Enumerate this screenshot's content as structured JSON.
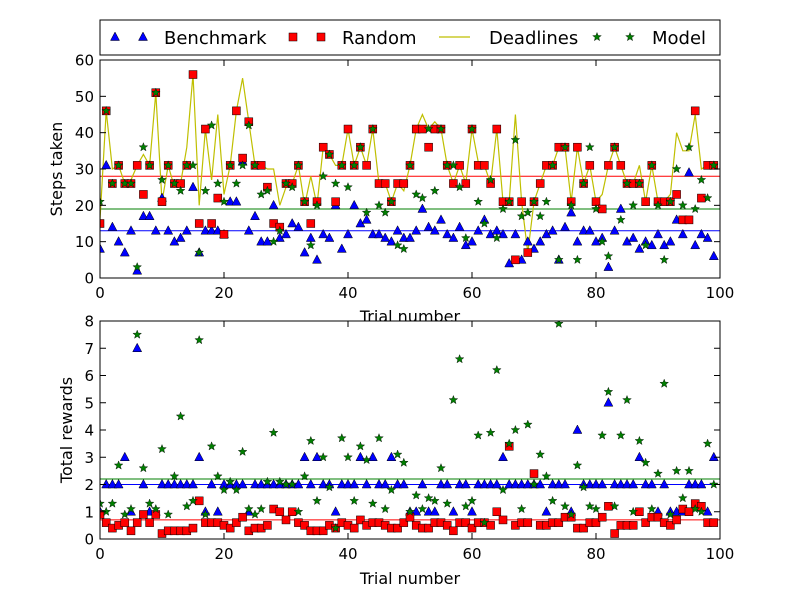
{
  "legend": {
    "placement": "top",
    "entries": [
      {
        "label": "Benchmark",
        "marker": "triangle",
        "color": "#0000ff"
      },
      {
        "label": "Random",
        "marker": "square",
        "color": "#ff0000"
      },
      {
        "label": "Deadlines",
        "marker": "line",
        "color": "#bfbf00"
      },
      {
        "label": "Model",
        "marker": "star",
        "color": "#007f00"
      }
    ]
  },
  "colors": {
    "benchmark": "#0000ff",
    "random": "#ff0000",
    "deadlines": "#bfbf00",
    "model": "#007f00"
  },
  "chart_data": [
    {
      "type": "scatter",
      "title": "",
      "xlabel": "Trial number",
      "ylabel": "Steps taken",
      "xlim": [
        0,
        100
      ],
      "ylim": [
        0,
        60
      ],
      "xticks": [
        0,
        20,
        40,
        60,
        80,
        100
      ],
      "yticks": [
        0,
        10,
        20,
        30,
        40,
        50,
        60
      ],
      "x": [
        0,
        1,
        2,
        3,
        4,
        5,
        6,
        7,
        8,
        9,
        10,
        11,
        12,
        13,
        14,
        15,
        16,
        17,
        18,
        19,
        20,
        21,
        22,
        23,
        24,
        25,
        26,
        27,
        28,
        29,
        30,
        31,
        32,
        33,
        34,
        35,
        36,
        37,
        38,
        39,
        40,
        41,
        42,
        43,
        44,
        45,
        46,
        47,
        48,
        49,
        50,
        51,
        52,
        53,
        54,
        55,
        56,
        57,
        58,
        59,
        60,
        61,
        62,
        63,
        64,
        65,
        66,
        67,
        68,
        69,
        70,
        71,
        72,
        73,
        74,
        75,
        76,
        77,
        78,
        79,
        80,
        81,
        82,
        83,
        84,
        85,
        86,
        87,
        88,
        89,
        90,
        91,
        92,
        93,
        94,
        95,
        96,
        97,
        98,
        99
      ],
      "series": [
        {
          "name": "Benchmark",
          "kind": "triangle",
          "values": [
            8,
            31,
            14,
            10,
            7,
            13,
            2,
            17,
            17,
            13,
            22,
            13,
            10,
            11,
            13,
            25,
            7,
            13,
            13,
            13,
            12,
            21,
            21,
            32,
            13,
            17,
            10,
            10,
            20,
            11,
            12,
            15,
            14,
            7,
            11,
            5,
            12,
            11,
            20,
            8,
            12,
            20,
            15,
            16,
            12,
            12,
            11,
            10,
            13,
            11,
            11,
            13,
            19,
            14,
            13,
            16,
            12,
            11,
            14,
            9,
            10,
            13,
            16,
            12,
            13,
            12,
            4,
            12,
            5,
            10,
            8,
            10,
            12,
            13,
            5,
            14,
            18,
            10,
            13,
            13,
            10,
            11,
            3,
            13,
            19,
            10,
            11,
            8,
            10,
            9,
            12,
            9,
            10,
            16,
            12,
            29,
            9,
            12,
            11,
            6
          ]
        },
        {
          "name": "Random",
          "kind": "square",
          "values": [
            15,
            46,
            26,
            31,
            26,
            26,
            31,
            23,
            31,
            51,
            21,
            31,
            26,
            26,
            31,
            56,
            15,
            41,
            15,
            22,
            12,
            31,
            46,
            33,
            43,
            31,
            31,
            25,
            15,
            14,
            26,
            26,
            31,
            21,
            15,
            21,
            36,
            34,
            21,
            31,
            41,
            31,
            36,
            31,
            41,
            26,
            26,
            21,
            26,
            26,
            31,
            41,
            41,
            36,
            41,
            41,
            31,
            26,
            31,
            26,
            41,
            31,
            31,
            26,
            41,
            21,
            21,
            5,
            21,
            7,
            21,
            26,
            31,
            31,
            36,
            36,
            21,
            36,
            26,
            31,
            21,
            19,
            31,
            36,
            31,
            26,
            26,
            26,
            21,
            31,
            21,
            21,
            21,
            23,
            16,
            16,
            46,
            22,
            31,
            31
          ]
        },
        {
          "name": "Deadlines",
          "kind": "line",
          "values": [
            16,
            46,
            30,
            31,
            26,
            27,
            31,
            34,
            31,
            51,
            21,
            31,
            25,
            26,
            36,
            56,
            20,
            41,
            27,
            45,
            23,
            31,
            46,
            55,
            43,
            31,
            31,
            30,
            30,
            20,
            25,
            26,
            31,
            20,
            28,
            20,
            36,
            34,
            31,
            31,
            41,
            31,
            36,
            31,
            41,
            26,
            26,
            21,
            26,
            24,
            31,
            41,
            45,
            41,
            43,
            41,
            31,
            26,
            31,
            26,
            41,
            32,
            31,
            26,
            41,
            21,
            21,
            45,
            21,
            7,
            21,
            26,
            31,
            31,
            36,
            36,
            21,
            36,
            26,
            31,
            21,
            23,
            31,
            36,
            31,
            26,
            26,
            31,
            21,
            31,
            21,
            21,
            23,
            40,
            35,
            35,
            45,
            30,
            31,
            31
          ]
        },
        {
          "name": "Model",
          "kind": "star",
          "values": [
            21,
            46,
            26,
            31,
            26,
            26,
            3,
            36,
            31,
            51,
            27,
            31,
            26,
            24,
            31,
            31,
            7,
            24,
            42,
            26,
            21,
            31,
            26,
            31,
            42,
            31,
            23,
            24,
            10,
            13,
            26,
            25,
            31,
            21,
            9,
            20,
            28,
            34,
            26,
            31,
            25,
            31,
            36,
            18,
            41,
            20,
            18,
            21,
            9,
            8,
            31,
            23,
            22,
            41,
            24,
            41,
            31,
            31,
            25,
            11,
            41,
            21,
            15,
            27,
            11,
            19,
            21,
            38,
            17,
            18,
            21,
            17,
            21,
            31,
            5,
            36,
            20,
            5,
            26,
            36,
            19,
            10,
            6,
            36,
            16,
            26,
            20,
            26,
            9,
            31,
            20,
            5,
            21,
            30,
            20,
            36,
            19,
            27,
            22,
            31
          ]
        }
      ],
      "hlines": [
        {
          "series": "Benchmark",
          "y": 13
        },
        {
          "series": "Model",
          "y": 19
        },
        {
          "series": "Random",
          "y": 28
        }
      ]
    },
    {
      "type": "scatter",
      "title": "",
      "xlabel": "Trial number",
      "ylabel": "Total rewards",
      "xlim": [
        0,
        100
      ],
      "ylim": [
        0,
        8
      ],
      "xticks": [
        0,
        20,
        40,
        60,
        80,
        100
      ],
      "yticks": [
        0,
        1,
        2,
        3,
        4,
        5,
        6,
        7,
        8
      ],
      "x": [
        0,
        1,
        2,
        3,
        4,
        5,
        6,
        7,
        8,
        9,
        10,
        11,
        12,
        13,
        14,
        15,
        16,
        17,
        18,
        19,
        20,
        21,
        22,
        23,
        24,
        25,
        26,
        27,
        28,
        29,
        30,
        31,
        32,
        33,
        34,
        35,
        36,
        37,
        38,
        39,
        40,
        41,
        42,
        43,
        44,
        45,
        46,
        47,
        48,
        49,
        50,
        51,
        52,
        53,
        54,
        55,
        56,
        57,
        58,
        59,
        60,
        61,
        62,
        63,
        64,
        65,
        66,
        67,
        68,
        69,
        70,
        71,
        72,
        73,
        74,
        75,
        76,
        77,
        78,
        79,
        80,
        81,
        82,
        83,
        84,
        85,
        86,
        87,
        88,
        89,
        90,
        91,
        92,
        93,
        94,
        95,
        96,
        97,
        98,
        99
      ],
      "series": [
        {
          "name": "Benchmark",
          "kind": "triangle",
          "values": [
            1,
            2,
            2,
            2,
            3,
            1,
            7,
            2,
            1,
            1,
            2,
            2,
            2,
            2,
            2,
            2,
            3,
            1,
            2,
            1,
            2,
            2,
            2,
            2,
            1,
            2,
            2,
            2,
            2,
            2,
            2,
            2,
            2,
            3,
            2,
            3,
            2,
            2,
            1,
            2,
            2,
            2,
            3,
            2,
            3,
            2,
            2,
            3,
            2,
            2,
            1,
            1,
            2,
            1,
            1,
            2,
            2,
            1,
            2,
            2,
            1,
            2,
            2,
            2,
            2,
            3,
            2,
            2,
            2,
            2,
            2,
            2,
            1,
            2,
            2,
            2,
            1,
            4,
            2,
            2,
            2,
            2,
            5,
            2,
            2,
            2,
            2,
            3,
            2,
            2,
            1,
            2,
            1,
            1,
            1,
            2,
            2,
            2,
            1,
            3
          ]
        },
        {
          "name": "Random",
          "kind": "square",
          "values": [
            0.9,
            0.6,
            0.4,
            0.5,
            0.6,
            0.3,
            0.6,
            0.9,
            0.6,
            0.9,
            0.2,
            0.3,
            0.3,
            0.3,
            0.3,
            0.4,
            1.4,
            0.6,
            0.6,
            0.6,
            0.5,
            0.4,
            0.6,
            0.8,
            0.3,
            0.4,
            0.4,
            0.5,
            1.1,
            1.0,
            0.7,
            1.0,
            0.6,
            0.5,
            0.3,
            0.3,
            0.3,
            0.5,
            0.4,
            0.6,
            0.5,
            0.4,
            0.7,
            0.5,
            0.6,
            0.6,
            0.5,
            0.4,
            0.4,
            0.6,
            0.8,
            0.5,
            0.4,
            0.4,
            0.6,
            0.6,
            0.5,
            0.3,
            0.6,
            0.6,
            0.4,
            0.6,
            0.6,
            0.5,
            1.0,
            0.7,
            3.4,
            0.5,
            0.6,
            0.6,
            2.4,
            0.5,
            0.5,
            0.6,
            0.6,
            0.8,
            0.8,
            0.4,
            0.4,
            0.6,
            0.6,
            0.8,
            1.2,
            0.2,
            0.5,
            0.5,
            0.5,
            1.0,
            0.6,
            0.8,
            0.8,
            0.6,
            0.5,
            0.7,
            1.1,
            1.0,
            1.3,
            1.2,
            0.6,
            0.6
          ]
        },
        {
          "name": "Model",
          "kind": "star",
          "values": [
            1.3,
            1.0,
            1.3,
            2.7,
            0.9,
            1.1,
            7.5,
            2.6,
            1.3,
            1.1,
            3.3,
            0.9,
            2.3,
            4.5,
            1.2,
            1.4,
            7.3,
            0.9,
            3.4,
            2.3,
            1.8,
            2.1,
            1.8,
            3.2,
            1.1,
            0.9,
            1.1,
            2.1,
            3.9,
            2.1,
            2.0,
            2.0,
            1.0,
            2.3,
            3.6,
            1.4,
            3.0,
            1.9,
            0.4,
            3.7,
            3.0,
            1.4,
            3.4,
            2.9,
            1.3,
            3.7,
            1.1,
            1.8,
            3.1,
            2.8,
            1.0,
            1.6,
            1.1,
            1.5,
            1.4,
            2.6,
            1.3,
            5.1,
            6.6,
            1.2,
            1.4,
            3.8,
            0.6,
            3.9,
            6.2,
            1.8,
            3.5,
            4.0,
            1.1,
            4.2,
            2.0,
            3.1,
            2.3,
            1.4,
            7.9,
            1.2,
            0.9,
            2.7,
            1.9,
            1.2,
            1.1,
            3.8,
            5.4,
            1.2,
            3.8,
            5.1,
            1.0,
            3.6,
            2.8,
            1.1,
            2.4,
            5.7,
            0.9,
            2.5,
            1.5,
            2.5,
            1.1,
            1.0,
            3.5,
            2.0
          ]
        }
      ],
      "hlines": [
        {
          "series": "Benchmark",
          "y": 2.0
        },
        {
          "series": "Model",
          "y": 2.2
        },
        {
          "series": "Random",
          "y": 0.7
        }
      ]
    }
  ]
}
